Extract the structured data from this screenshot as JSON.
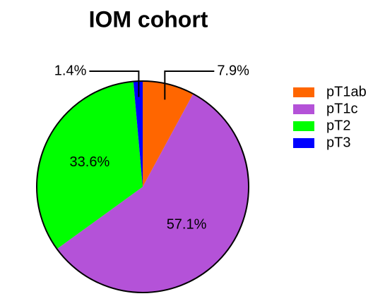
{
  "chart_data": {
    "type": "pie",
    "title": "IOM cohort",
    "categories": [
      "pT1ab",
      "pT1c",
      "pT2",
      "pT3"
    ],
    "values": [
      7.9,
      57.1,
      33.6,
      1.4
    ],
    "value_labels": [
      "7.9%",
      "57.1%",
      "33.6%",
      "1.4%"
    ],
    "colors": [
      "#ff6600",
      "#b452d8",
      "#00ff00",
      "#0000ff"
    ],
    "legend": "right"
  }
}
